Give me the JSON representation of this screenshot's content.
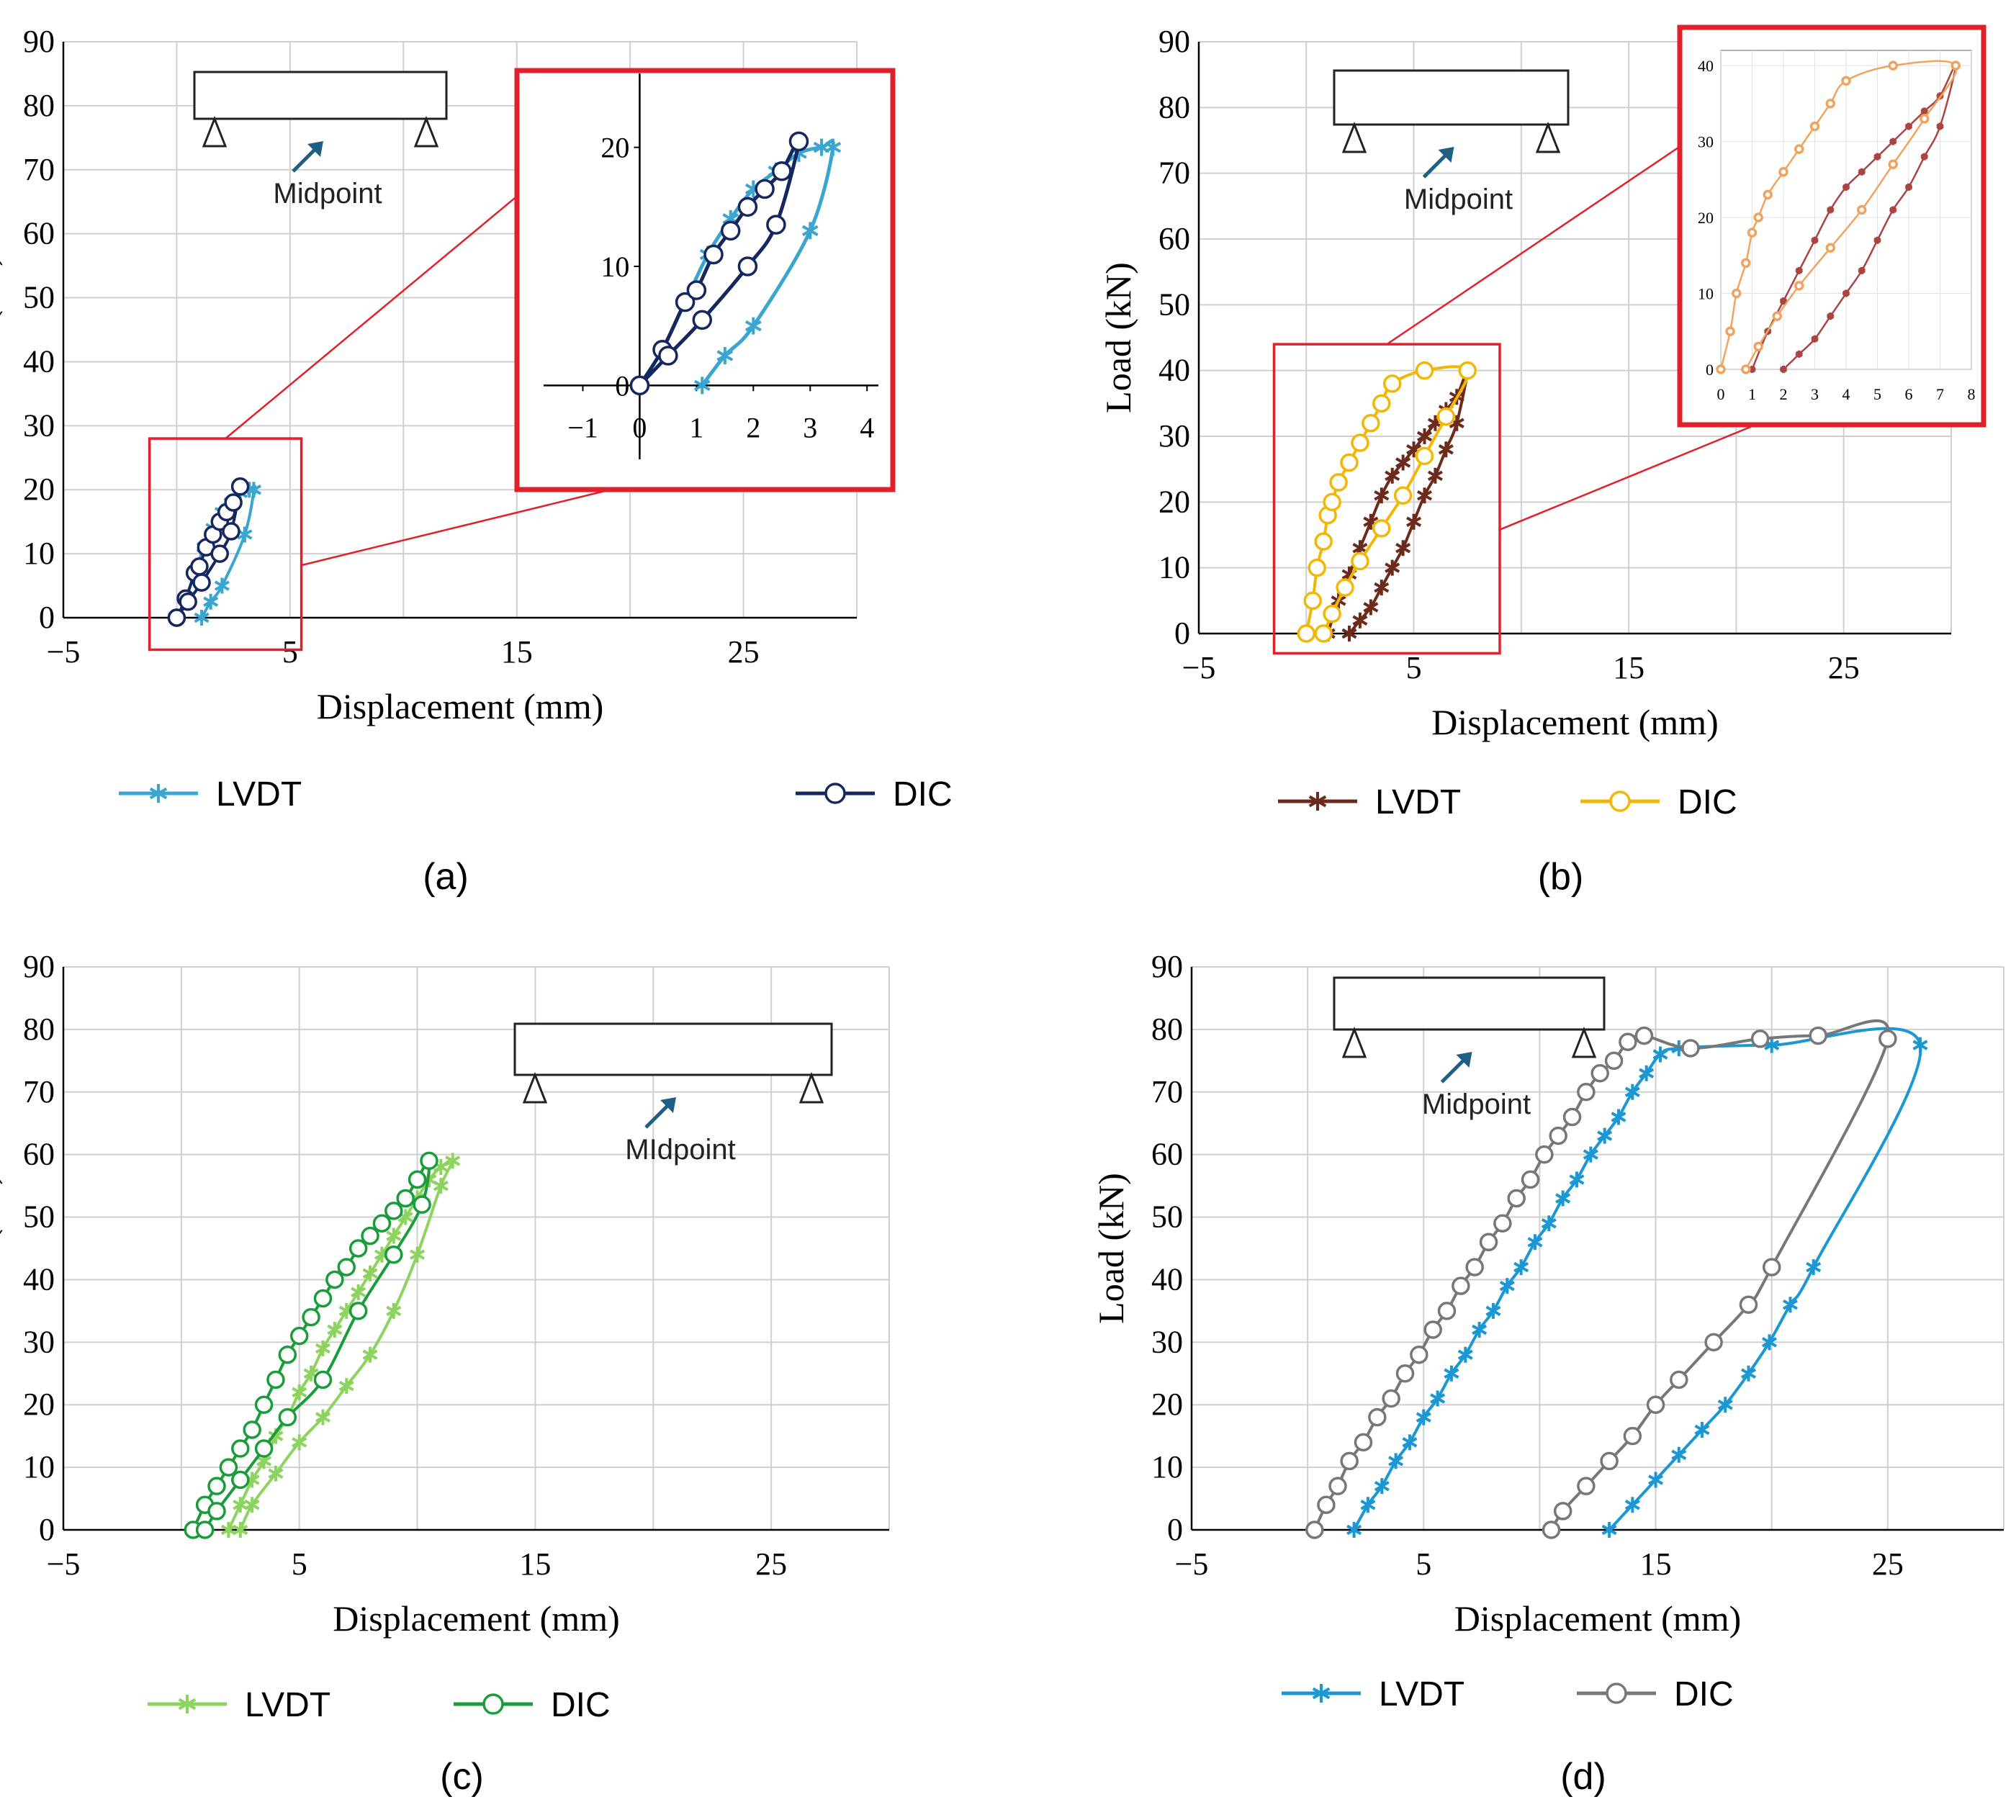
{
  "figure": {
    "colors": {
      "grid": "#cfcfcf",
      "axis": "#000000",
      "zoom_frame": "#e0202a",
      "arrow": "#1f5f84"
    }
  },
  "chart_data": [
    {
      "id": "a",
      "type": "line",
      "caption": "(a)",
      "xlabel": "Displacement (mm)",
      "ylabel": "Load (kN)",
      "xlim": [
        -5,
        30
      ],
      "ylim": [
        0,
        90
      ],
      "xticks": [
        -5,
        5,
        15,
        25
      ],
      "yticks": [
        0,
        10,
        20,
        30,
        40,
        50,
        60,
        70,
        80,
        90
      ],
      "grid": true,
      "legend_position": "bottom",
      "inset_label": "Midpoint",
      "series": [
        {
          "name": "LVDT",
          "color": "#3aa6cf",
          "marker": "star",
          "x": [
            0,
            0.4,
            0.8,
            1.2,
            1.6,
            2.0,
            2.4,
            2.8,
            3.2,
            3.4,
            3.0,
            2.0,
            1.5,
            1.1
          ],
          "y": [
            0,
            3,
            7,
            11,
            14,
            16.5,
            18,
            19.5,
            20,
            20,
            13,
            5,
            2.5,
            0
          ]
        },
        {
          "name": "DIC",
          "color": "#14275e",
          "marker": "circle",
          "x": [
            0,
            0.4,
            0.8,
            1.0,
            1.3,
            1.6,
            1.9,
            2.2,
            2.5,
            2.8,
            2.4,
            1.9,
            1.1,
            0.5,
            0
          ],
          "y": [
            0,
            3,
            7,
            8,
            11,
            13,
            15,
            16.5,
            18,
            20.5,
            13.5,
            10,
            5.5,
            2.5,
            0
          ]
        }
      ],
      "zoom": {
        "xlim": [
          -1.5,
          4.2
        ],
        "ylim": [
          -5,
          25
        ],
        "xticks": [
          -1,
          0,
          1,
          2,
          3,
          4
        ],
        "yticks": [
          0,
          10,
          20
        ],
        "source_box": {
          "x": [
            -1.2,
            5.5
          ],
          "y": [
            -5,
            28
          ]
        }
      }
    },
    {
      "id": "b",
      "type": "line",
      "caption": "(b)",
      "xlabel": "Displacement (mm)",
      "ylabel": "Load (kN)",
      "xlim": [
        -5,
        30
      ],
      "ylim": [
        0,
        90
      ],
      "xticks": [
        -5,
        5,
        15,
        25
      ],
      "yticks": [
        0,
        10,
        20,
        30,
        40,
        50,
        60,
        70,
        80,
        90
      ],
      "grid": true,
      "legend_position": "bottom",
      "inset_label": "Midpoint",
      "series": [
        {
          "name": "LVDT",
          "color": "#6b2a1a",
          "marker": "star",
          "x": [
            1.0,
            1.5,
            2.0,
            2.5,
            3.0,
            3.5,
            4.0,
            4.5,
            5.0,
            5.5,
            6.0,
            6.5,
            7.0,
            7.5,
            7.0,
            6.5,
            6.0,
            5.5,
            5.0,
            4.5,
            4.0,
            3.5,
            3.0,
            2.5,
            2.0
          ],
          "y": [
            0,
            5,
            9,
            13,
            17,
            21,
            24,
            26,
            28,
            30,
            32,
            34,
            36,
            40,
            32,
            28,
            24,
            21,
            17,
            13,
            10,
            7,
            4,
            2,
            0
          ]
        },
        {
          "name": "DIC",
          "color": "#f2b705",
          "marker": "circle",
          "x": [
            0,
            0.3,
            0.5,
            0.8,
            1.0,
            1.2,
            1.5,
            2.0,
            2.5,
            3.0,
            3.5,
            4.0,
            5.5,
            7.5,
            6.5,
            5.5,
            4.5,
            3.5,
            2.5,
            1.8,
            1.2,
            0.8
          ],
          "y": [
            0,
            5,
            10,
            14,
            18,
            20,
            23,
            26,
            29,
            32,
            35,
            38,
            40,
            40,
            33,
            27,
            21,
            16,
            11,
            7,
            3,
            0
          ]
        }
      ],
      "zoom": {
        "xlim": [
          0,
          8
        ],
        "ylim": [
          0,
          42
        ],
        "xticks": [
          0,
          1,
          2,
          3,
          4,
          5,
          6,
          7,
          8
        ],
        "yticks": [
          0,
          10,
          20,
          30,
          40
        ],
        "source_box": {
          "x": [
            -1.5,
            9
          ],
          "y": [
            -3,
            44
          ]
        },
        "series_colors": [
          "#a94442",
          "#f0a35e"
        ]
      }
    },
    {
      "id": "c",
      "type": "line",
      "caption": "(c)",
      "xlabel": "Displacement (mm)",
      "ylabel": "Load (kN)",
      "xlim": [
        -5,
        30
      ],
      "ylim": [
        0,
        90
      ],
      "xticks": [
        -5,
        5,
        15,
        25
      ],
      "yticks": [
        0,
        10,
        20,
        30,
        40,
        50,
        60,
        70,
        80,
        90
      ],
      "grid": true,
      "legend_position": "bottom",
      "inset_label": "MIdpoint",
      "series": [
        {
          "name": "LVDT",
          "color": "#8cd35f",
          "marker": "star",
          "x": [
            2.0,
            2.5,
            3.0,
            3.5,
            4.0,
            4.5,
            5.0,
            5.5,
            6.0,
            6.5,
            7.0,
            7.5,
            8.0,
            8.5,
            9.0,
            9.5,
            10.0,
            10.5,
            11.0,
            11.5,
            11.0,
            10.0,
            9.0,
            8.0,
            7.0,
            6.0,
            5.0,
            4.0,
            3.0,
            2.5
          ],
          "y": [
            0,
            4,
            8,
            11,
            15,
            18,
            22,
            25,
            29,
            32,
            35,
            38,
            41,
            44,
            47,
            50,
            53,
            56,
            58,
            59,
            55,
            44,
            35,
            28,
            23,
            18,
            14,
            9,
            4,
            0
          ]
        },
        {
          "name": "DIC",
          "color": "#1b9c3a",
          "marker": "circle",
          "x": [
            0.5,
            1.0,
            1.5,
            2.0,
            2.5,
            3.0,
            3.5,
            4.0,
            4.5,
            5.0,
            5.5,
            6.0,
            6.5,
            7.0,
            7.5,
            8.0,
            8.5,
            9.0,
            9.5,
            10.0,
            10.5,
            10.2,
            9.0,
            7.5,
            6.0,
            4.5,
            3.5,
            2.5,
            1.5,
            1.0
          ],
          "y": [
            0,
            4,
            7,
            10,
            13,
            16,
            20,
            24,
            28,
            31,
            34,
            37,
            40,
            42,
            45,
            47,
            49,
            51,
            53,
            56,
            59,
            52,
            44,
            35,
            24,
            18,
            13,
            8,
            3,
            0
          ]
        }
      ]
    },
    {
      "id": "d",
      "type": "line",
      "caption": "(d)",
      "xlabel": "Displacement (mm)",
      "ylabel": "Load (kN)",
      "xlim": [
        -5,
        30
      ],
      "ylim": [
        0,
        90
      ],
      "xticks": [
        -5,
        5,
        15,
        25
      ],
      "yticks": [
        0,
        10,
        20,
        30,
        40,
        50,
        60,
        70,
        80,
        90
      ],
      "grid": true,
      "legend_position": "bottom",
      "inset_label": "Midpoint",
      "series": [
        {
          "name": "LVDT",
          "color": "#1b97d3",
          "marker": "star",
          "x": [
            2.0,
            2.6,
            3.2,
            3.8,
            4.4,
            5.0,
            5.6,
            6.2,
            6.8,
            7.4,
            8.0,
            8.6,
            9.2,
            9.8,
            10.4,
            11.0,
            11.6,
            12.2,
            12.8,
            13.4,
            14.0,
            14.6,
            15.2,
            16.0,
            20.0,
            26.4,
            21.8,
            20.8,
            19.9,
            19.0,
            18.0,
            17.0,
            16.0,
            15.0,
            14.0,
            13.0
          ],
          "y": [
            0,
            4,
            7,
            11,
            14,
            18,
            21,
            25,
            28,
            32,
            35,
            39,
            42,
            46,
            49,
            53,
            56,
            60,
            63,
            66,
            70,
            73,
            76,
            77,
            77.5,
            77.5,
            42,
            36,
            30,
            25,
            20,
            16,
            12,
            8,
            4,
            0
          ]
        },
        {
          "name": "DIC",
          "color": "#777777",
          "marker": "circle",
          "x": [
            0.3,
            0.8,
            1.3,
            1.8,
            2.4,
            3.0,
            3.6,
            4.2,
            4.8,
            5.4,
            6.0,
            6.6,
            7.2,
            7.8,
            8.4,
            9.0,
            9.6,
            10.2,
            10.8,
            11.4,
            12.0,
            12.6,
            13.2,
            13.8,
            14.5,
            16.5,
            19.5,
            22.0,
            25.0,
            20.0,
            19.0,
            17.5,
            16.0,
            15.0,
            14.0,
            13.0,
            12.0,
            11.0,
            10.5
          ],
          "y": [
            0,
            4,
            7,
            11,
            14,
            18,
            21,
            25,
            28,
            32,
            35,
            39,
            42,
            46,
            49,
            53,
            56,
            60,
            63,
            66,
            70,
            73,
            75,
            78,
            79,
            77,
            78.5,
            79,
            78.5,
            42,
            36,
            30,
            24,
            20,
            15,
            11,
            7,
            3,
            0
          ]
        }
      ]
    }
  ]
}
